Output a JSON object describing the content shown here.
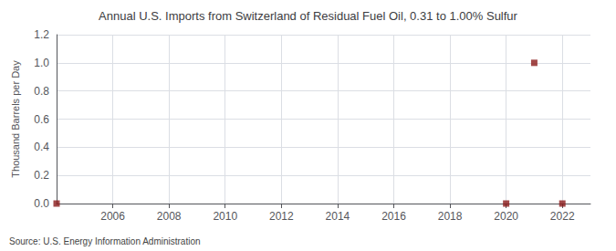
{
  "chart_data": {
    "type": "scatter",
    "title": "Annual U.S. Imports from Switzerland of Residual Fuel Oil, 0.31 to 1.00% Sulfur",
    "ylabel": "Thousand Barrels per Day",
    "annotation": "Source: U.S. Energy Information Administration",
    "x": [
      2004,
      2020,
      2021,
      2022
    ],
    "values": [
      0.0,
      0.0,
      1.0,
      0.0
    ],
    "color": "#8b1a1a",
    "marker": "square",
    "xlim": [
      2004.0,
      2023.0
    ],
    "xticks": [
      2006,
      2008,
      2010,
      2012,
      2014,
      2016,
      2018,
      2020,
      2022
    ],
    "ylim": [
      0.0,
      1.2
    ],
    "yticks": [
      {
        "value": 0,
        "label": "0.0"
      },
      0.2,
      0.4,
      0.6,
      0.8,
      {
        "value": 1,
        "label": "1.0"
      },
      1.2
    ],
    "grid": true
  }
}
